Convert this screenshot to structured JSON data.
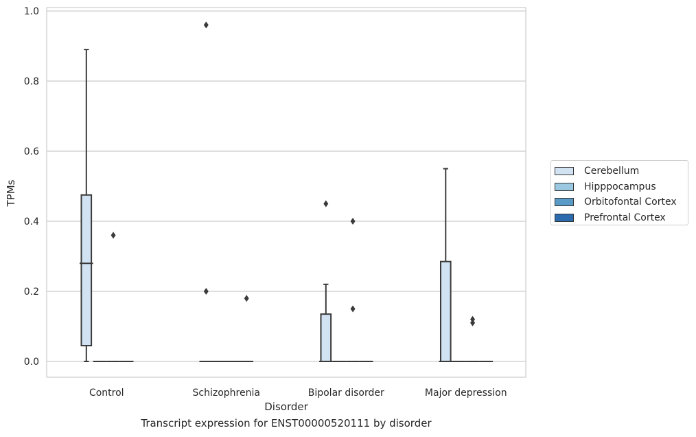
{
  "chart_data": {
    "type": "box",
    "caption": "Transcript expression for ENST00000520111 by disorder",
    "xlabel": "Disorder",
    "ylabel": "TPMs",
    "ylim": [
      -0.045,
      1.01
    ],
    "yticks": [
      "0.0",
      "0.2",
      "0.4",
      "0.6",
      "0.8",
      "1.0"
    ],
    "grid": "horizontal",
    "legend_position": "outside-right",
    "categories": [
      "Control",
      "Schizophrenia",
      "Bipolar disorder",
      "Major depression"
    ],
    "series": [
      {
        "name": "Cerebellum",
        "color": "#d1e2f2",
        "boxes": [
          {
            "min": 0.0,
            "q1": 0.045,
            "median": 0.28,
            "q3": 0.475,
            "max": 0.89,
            "outliers": []
          },
          {
            "min": 0.0,
            "q1": 0.0,
            "median": 0.0,
            "q3": 0.0,
            "max": 0.0,
            "outliers": [
              0.2,
              0.96
            ]
          },
          {
            "min": 0.0,
            "q1": 0.0,
            "median": 0.0,
            "q3": 0.135,
            "max": 0.22,
            "outliers": [
              0.45
            ]
          },
          {
            "min": 0.0,
            "q1": 0.0,
            "median": 0.0,
            "q3": 0.285,
            "max": 0.55,
            "outliers": []
          }
        ]
      },
      {
        "name": "Hipppocampus",
        "color": "#9ac8e0",
        "boxes": [
          {
            "min": 0.0,
            "q1": 0.0,
            "median": 0.0,
            "q3": 0.0,
            "max": 0.0,
            "outliers": []
          },
          {
            "min": 0.0,
            "q1": 0.0,
            "median": 0.0,
            "q3": 0.0,
            "max": 0.0,
            "outliers": []
          },
          {
            "min": 0.0,
            "q1": 0.0,
            "median": 0.0,
            "q3": 0.0,
            "max": 0.0,
            "outliers": []
          },
          {
            "min": 0.0,
            "q1": 0.0,
            "median": 0.0,
            "q3": 0.0,
            "max": 0.0,
            "outliers": []
          }
        ]
      },
      {
        "name": "Orbitofontal Cortex",
        "color": "#5a9ac6",
        "boxes": [
          {
            "min": 0.0,
            "q1": 0.0,
            "median": 0.0,
            "q3": 0.0,
            "max": 0.0,
            "outliers": [
              0.36
            ]
          },
          {
            "min": 0.0,
            "q1": 0.0,
            "median": 0.0,
            "q3": 0.0,
            "max": 0.0,
            "outliers": []
          },
          {
            "min": 0.0,
            "q1": 0.0,
            "median": 0.0,
            "q3": 0.0,
            "max": 0.0,
            "outliers": [
              0.15,
              0.4
            ]
          },
          {
            "min": 0.0,
            "q1": 0.0,
            "median": 0.0,
            "q3": 0.0,
            "max": 0.0,
            "outliers": [
              0.11,
              0.12
            ]
          }
        ]
      },
      {
        "name": "Prefrontal Cortex",
        "color": "#2a6aad",
        "boxes": [
          {
            "min": 0.0,
            "q1": 0.0,
            "median": 0.0,
            "q3": 0.0,
            "max": 0.0,
            "outliers": []
          },
          {
            "min": 0.0,
            "q1": 0.0,
            "median": 0.0,
            "q3": 0.0,
            "max": 0.0,
            "outliers": [
              0.18
            ]
          },
          {
            "min": 0.0,
            "q1": 0.0,
            "median": 0.0,
            "q3": 0.0,
            "max": 0.0,
            "outliers": []
          },
          {
            "min": 0.0,
            "q1": 0.0,
            "median": 0.0,
            "q3": 0.0,
            "max": 0.0,
            "outliers": []
          }
        ]
      }
    ]
  }
}
